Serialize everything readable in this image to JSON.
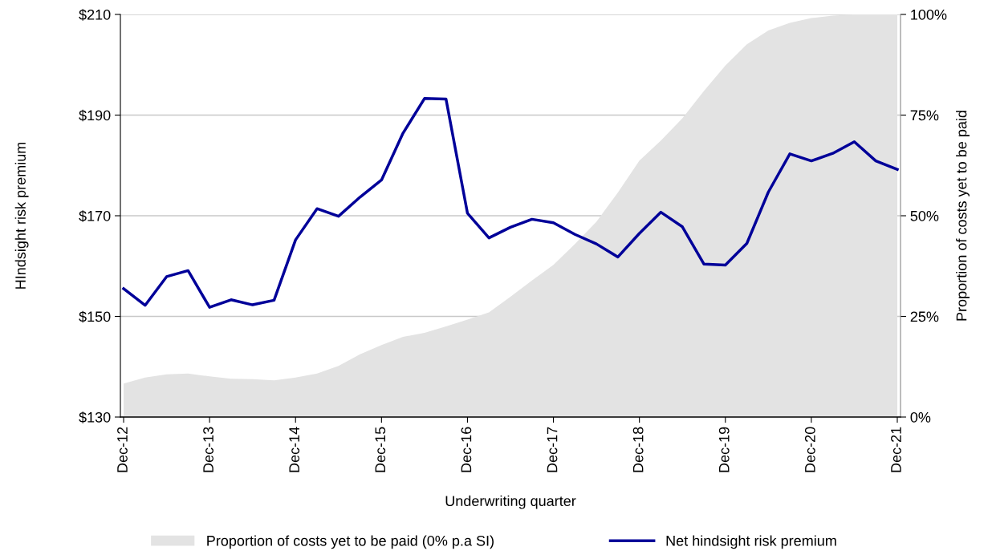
{
  "chart_data": {
    "type": "line",
    "xlabel": "Underwriting quarter",
    "ylabel": "HIndsight risk premium",
    "y2label": "Proportion of costs yet to be paid",
    "categories": [
      "Dec-12",
      null,
      null,
      null,
      "Dec-13",
      null,
      null,
      null,
      "Dec-14",
      null,
      null,
      null,
      "Dec-15",
      null,
      null,
      null,
      "Dec-16",
      null,
      null,
      null,
      "Dec-17",
      null,
      null,
      null,
      "Dec-18",
      null,
      null,
      null,
      "Dec-19",
      null,
      null,
      null,
      "Dec-20",
      null,
      null,
      null,
      "Dec-21"
    ],
    "series": [
      {
        "name": "Proportion of costs yet to be paid (0% p.a SI)",
        "type": "area",
        "axis": "y2",
        "color": "#e3e3e3",
        "values": [
          8.3,
          9.8,
          10.6,
          10.8,
          10.1,
          9.5,
          9.4,
          9.1,
          9.8,
          10.8,
          12.7,
          15.6,
          17.9,
          19.9,
          20.9,
          22.5,
          24.2,
          26.0,
          29.9,
          33.9,
          37.8,
          43.0,
          48.5,
          55.8,
          63.7,
          68.7,
          74.2,
          81.0,
          87.3,
          92.6,
          96.0,
          97.9,
          99.1,
          99.7,
          100,
          100,
          100
        ]
      },
      {
        "name": "Net hindsight risk premium",
        "color": "#000099",
        "values": [
          155.5,
          152.2,
          157.9,
          159.1,
          151.8,
          153.3,
          152.3,
          153.2,
          165.2,
          171.4,
          169.9,
          173.7,
          177.1,
          186.4,
          193.3,
          193.2,
          170.5,
          165.6,
          167.7,
          169.3,
          168.6,
          166.3,
          164.4,
          161.8,
          166.5,
          170.7,
          167.8,
          160.4,
          160.2,
          164.5,
          174.7,
          182.3,
          180.9,
          182.4,
          184.7,
          180.9,
          179.2
        ]
      }
    ],
    "ylim": [
      130,
      210
    ],
    "yticks": [
      {
        "value": 130,
        "label": "$130"
      },
      {
        "value": 150,
        "label": "$150"
      },
      {
        "value": 170,
        "label": "$170"
      },
      {
        "value": 190,
        "label": "$190"
      },
      {
        "value": 210,
        "label": "$210"
      }
    ],
    "y2lim": [
      0,
      100
    ],
    "y2ticks": [
      {
        "value": 0,
        "label": "0%"
      },
      {
        "value": 25,
        "label": "25%"
      },
      {
        "value": 50,
        "label": "50%"
      },
      {
        "value": 75,
        "label": "75%"
      },
      {
        "value": 100,
        "label": "100%"
      }
    ],
    "grid": "y",
    "legend": "bottom"
  }
}
